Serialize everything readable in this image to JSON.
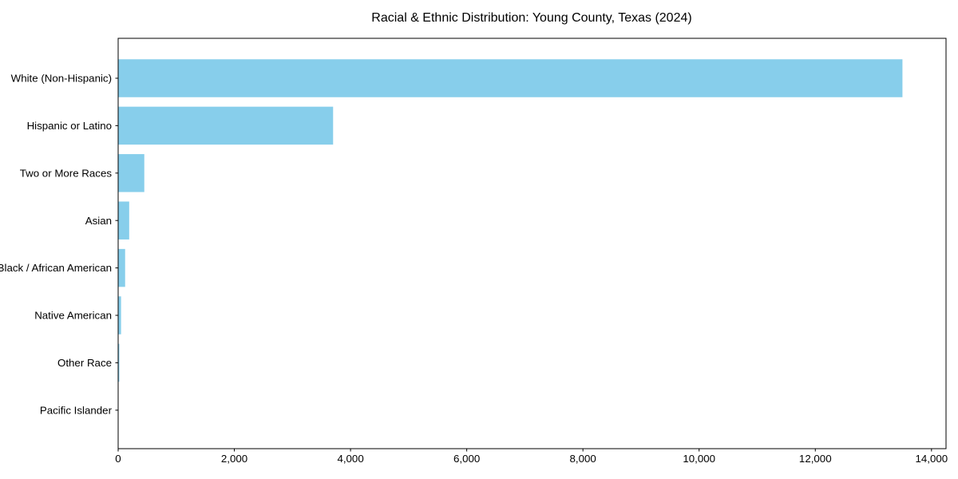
{
  "chart_data": {
    "type": "bar",
    "orientation": "horizontal",
    "title": "Racial & Ethnic Distribution: Young County, Texas (2024)",
    "xlabel": "",
    "ylabel": "",
    "categories": [
      "White (Non-Hispanic)",
      "Hispanic or Latino",
      "Two or More Races",
      "Asian",
      "Black / African American",
      "Native American",
      "Other Race",
      "Pacific Islander"
    ],
    "values": [
      13500,
      3700,
      450,
      190,
      120,
      50,
      20,
      5
    ],
    "xlim": [
      0,
      14250
    ],
    "xticks": {
      "values": [
        0,
        2000,
        4000,
        6000,
        8000,
        10000,
        12000,
        14000
      ],
      "labels": [
        "0",
        "2,000",
        "4,000",
        "6,000",
        "8,000",
        "10,000",
        "12,000",
        "14,000"
      ]
    },
    "grid": false,
    "legend": null,
    "bar_color": "#87CEEB",
    "axis_color": "#000000",
    "text_color": "#000000",
    "background_color": "#ffffff"
  }
}
